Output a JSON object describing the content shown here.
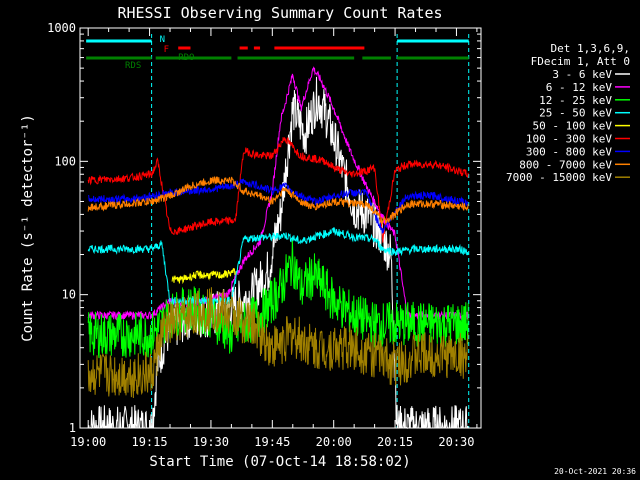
{
  "chart_data": {
    "type": "line",
    "title": "RHESSI Observing Summary Count Rates",
    "xlabel": "Start Time (07-Oct-14 18:58:02)",
    "ylabel": "Count Rate (s⁻¹ detector⁻¹)",
    "y_scale": "log",
    "ylim": [
      1,
      1000
    ],
    "xlim_minutes": [
      -2,
      96
    ],
    "x_ticks": [
      {
        "label": "19:00",
        "min": 0
      },
      {
        "label": "19:15",
        "min": 15
      },
      {
        "label": "19:30",
        "min": 30
      },
      {
        "label": "19:45",
        "min": 45
      },
      {
        "label": "20:00",
        "min": 60
      },
      {
        "label": "20:15",
        "min": 75
      },
      {
        "label": "20:30",
        "min": 90
      }
    ],
    "y_ticks": [
      {
        "label": "1",
        "v": 1
      },
      {
        "label": "10",
        "v": 10
      },
      {
        "label": "100",
        "v": 100
      },
      {
        "label": "1000",
        "v": 1000
      }
    ],
    "legend": {
      "header": [
        "Det 1,3,6,9,",
        "FDecim 1, Att 0"
      ],
      "placement": "right"
    },
    "series": [
      {
        "name": "3 - 6 keV",
        "color": "#ffffff",
        "x": [
          0,
          10,
          15.5,
          17,
          19,
          22,
          25,
          30,
          35,
          40,
          44,
          47,
          50,
          53,
          56,
          58,
          60,
          62,
          65,
          68,
          71,
          74,
          75.5,
          78,
          85,
          93
        ],
        "y": [
          1,
          1,
          1,
          3,
          5,
          6,
          7,
          7,
          8,
          10,
          15,
          40,
          250,
          160,
          300,
          230,
          150,
          90,
          45,
          40,
          30,
          20,
          1,
          1,
          1,
          1
        ]
      },
      {
        "name": "6 - 12 keV",
        "color": "#ff00ff",
        "x": [
          0,
          10,
          15.5,
          20,
          24,
          28,
          34,
          38,
          42,
          45,
          47,
          50,
          52,
          55,
          57,
          60,
          64,
          68,
          72,
          75,
          78,
          85,
          93
        ],
        "y": [
          7,
          7,
          7,
          9,
          8,
          9,
          10,
          18,
          25,
          60,
          200,
          450,
          250,
          500,
          400,
          250,
          120,
          65,
          38,
          28,
          7,
          7,
          7
        ]
      },
      {
        "name": "12 - 25 keV",
        "color": "#00ff00",
        "x": [
          0,
          10,
          15.5,
          20,
          25,
          30,
          35,
          38,
          42,
          45,
          47,
          50,
          52,
          55,
          57,
          60,
          65,
          70,
          75,
          78,
          85,
          93
        ],
        "y": [
          5,
          5,
          5,
          7,
          8,
          7,
          5,
          6,
          7,
          9,
          11,
          18,
          11,
          14,
          12,
          9,
          7,
          6,
          6,
          6,
          6,
          6
        ]
      },
      {
        "name": "25 - 50 keV",
        "color": "#00ffff",
        "x": [
          0,
          10,
          15.5,
          18,
          20,
          22,
          25,
          30,
          35,
          38,
          42,
          45,
          48,
          52,
          55,
          60,
          65,
          70,
          72,
          75,
          80,
          85,
          90,
          93
        ],
        "y": [
          22,
          22,
          22,
          24,
          9,
          9,
          9,
          9,
          9,
          26,
          27,
          27,
          28,
          25,
          27,
          30,
          27,
          26,
          22,
          21,
          22,
          22,
          22,
          21
        ]
      },
      {
        "name": "50 - 100 keV",
        "color": "#ffff00",
        "x": [
          20.5,
          23,
          26,
          30,
          33,
          36
        ],
        "y": [
          13,
          13,
          14,
          14,
          14,
          15
        ]
      },
      {
        "name": "100 - 300 keV",
        "color": "#ff0000",
        "x": [
          0,
          10,
          15.5,
          17,
          20,
          22,
          25,
          30,
          36,
          38,
          42,
          45,
          48,
          52,
          55,
          58,
          60,
          64,
          68,
          70,
          72,
          75,
          78,
          85,
          93
        ],
        "y": [
          72,
          75,
          80,
          100,
          30,
          30,
          32,
          35,
          36,
          120,
          110,
          110,
          150,
          110,
          105,
          100,
          90,
          80,
          85,
          90,
          26,
          85,
          95,
          95,
          80
        ]
      },
      {
        "name": "300 - 800 keV",
        "color": "#0000ff",
        "x": [
          0,
          10,
          15.5,
          20,
          25,
          30,
          35,
          38,
          42,
          45,
          48,
          52,
          55,
          58,
          60,
          64,
          68,
          70,
          72,
          75,
          78,
          85,
          93
        ],
        "y": [
          52,
          52,
          55,
          58,
          60,
          62,
          65,
          70,
          65,
          60,
          65,
          55,
          50,
          52,
          55,
          58,
          58,
          40,
          30,
          42,
          55,
          55,
          48
        ]
      },
      {
        "name": "800 - 7000 keV",
        "color": "#ff8000",
        "x": [
          0,
          10,
          15.5,
          20,
          25,
          30,
          35,
          38,
          42,
          45,
          48,
          52,
          55,
          58,
          60,
          64,
          68,
          70,
          72,
          75,
          78,
          85,
          93
        ],
        "y": [
          45,
          48,
          50,
          55,
          65,
          72,
          72,
          60,
          55,
          50,
          62,
          50,
          45,
          48,
          50,
          48,
          48,
          42,
          35,
          40,
          48,
          48,
          45
        ]
      },
      {
        "name": "7000 - 15000 keV",
        "color": "#a08000",
        "x": [
          0,
          10,
          15.5,
          18,
          20,
          25,
          30,
          35,
          40,
          45,
          50,
          55,
          60,
          65,
          70,
          75,
          80,
          85,
          93
        ],
        "y": [
          2.5,
          2.5,
          2.5,
          5,
          6,
          7,
          8,
          7,
          6,
          4,
          5,
          4,
          4,
          4,
          3.5,
          3,
          3.5,
          3.5,
          3.5
        ]
      }
    ],
    "flag_bars": {
      "labels": {
        "N": "N",
        "F": "F",
        "RDO": "RDO",
        "RDS": "RDS"
      },
      "N": {
        "color": "#00ffff",
        "segments": [
          [
            -0.5,
            15.5
          ],
          [
            75.5,
            93
          ]
        ]
      },
      "F": {
        "color": "#ff0000",
        "segments": [
          [
            22,
            25
          ],
          [
            37,
            39
          ],
          [
            40.5,
            42
          ],
          [
            45.5,
            67.5
          ]
        ]
      },
      "RDS": {
        "color": "#008000",
        "segments": [
          [
            -0.5,
            15.5
          ],
          [
            16.5,
            35
          ],
          [
            36.5,
            65
          ],
          [
            67,
            74
          ],
          [
            75.5,
            93
          ]
        ]
      }
    },
    "attenuator_lines_min": [
      15.5,
      75.5,
      93
    ]
  },
  "footer": {
    "timestamp": "20-Oct-2021 20:36"
  }
}
